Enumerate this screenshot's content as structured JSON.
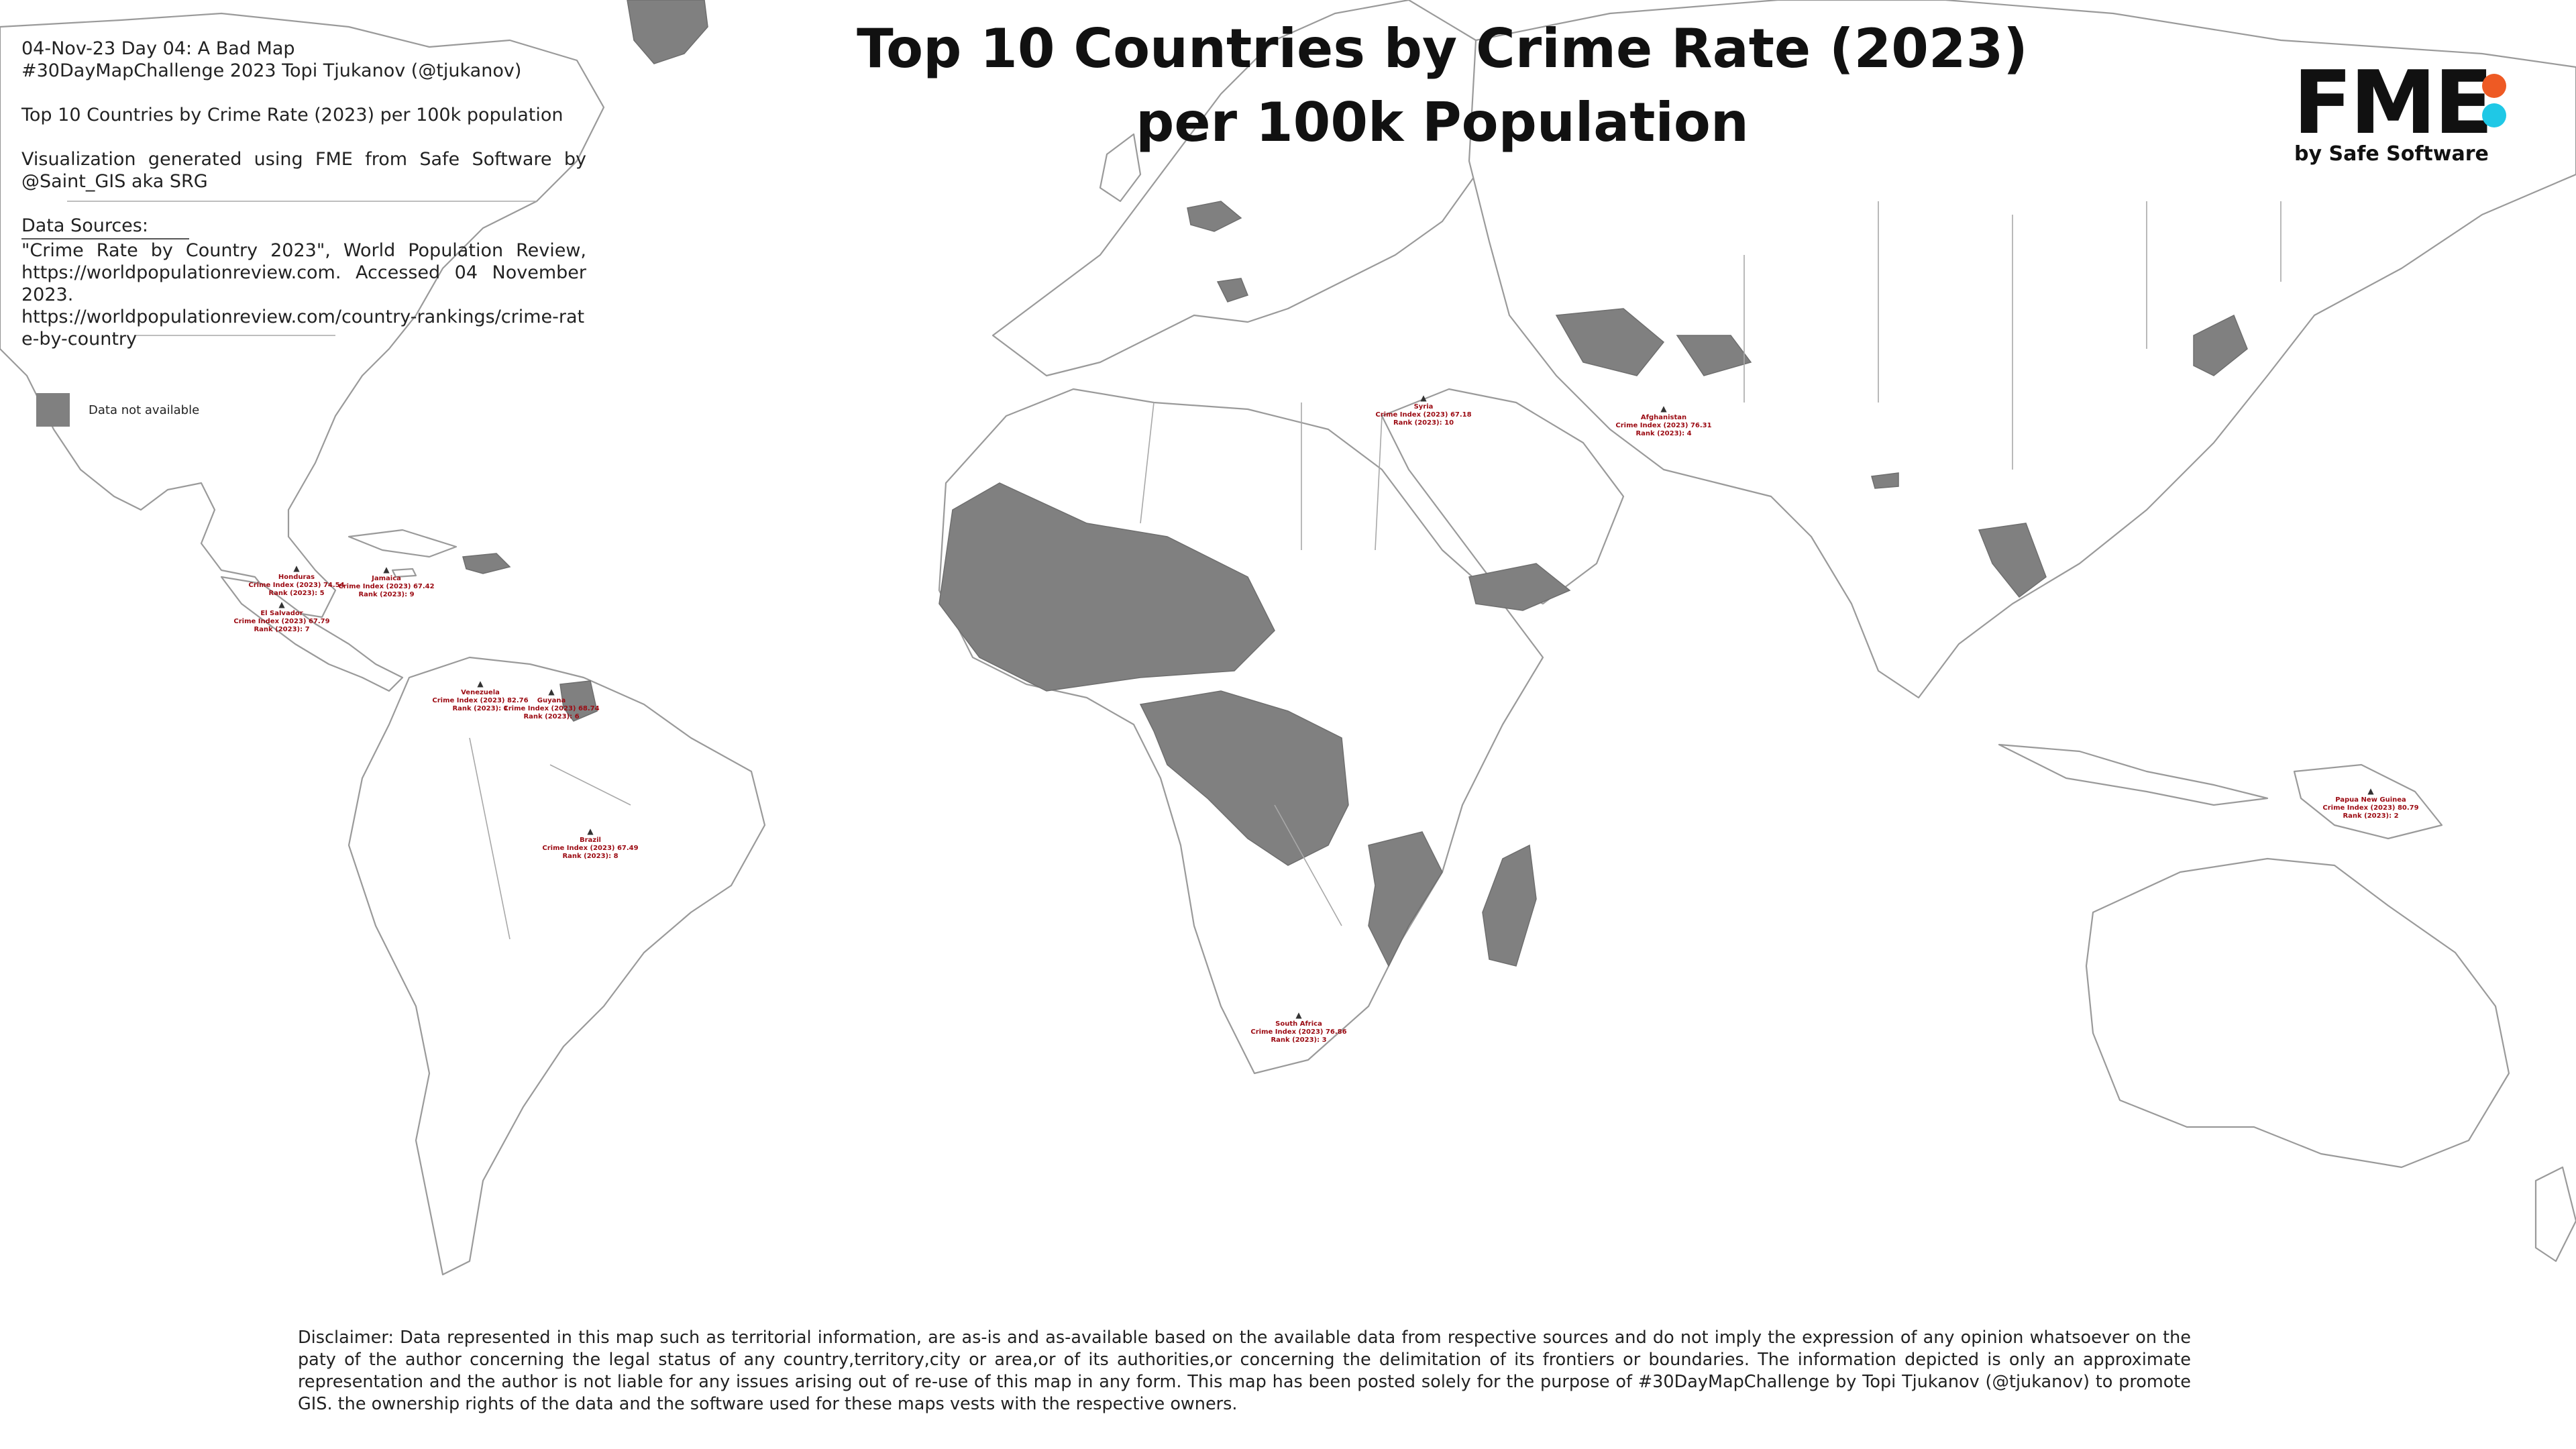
{
  "title": "Top 10 Countries by Crime Rate (2023) per 100k Population",
  "info": {
    "date_line": "04-Nov-23 Day 04: A Bad Map",
    "challenge_line": "#30DayMapChallenge 2023 Topi Tjukanov (@tjukanov)",
    "subtitle": "Top 10 Countries by Crime Rate (2023) per 100k population",
    "credit": "Visualization generated using FME from Safe Software by @Saint_GIS aka SRG",
    "sources_heading": "Data Sources:",
    "source_text": "\"Crime Rate by Country 2023\", World Population Review, https://worldpopulationreview.com. Accessed 04 November 2023.",
    "source_url": "https://worldpopulationreview.com/country-rankings/crime-rate-by-country"
  },
  "legend": {
    "label": "Data not available",
    "color": "#808080"
  },
  "logo": {
    "word": "FME",
    "sub": "by Safe Software",
    "dot_colors": [
      "#ee5a24",
      "#1fc8e6"
    ]
  },
  "colors": {
    "land": "#ffffff",
    "no_data": "#808080",
    "border": "#9a9a9a",
    "label": "#9b0a12"
  },
  "countries": [
    {
      "name": "Venezuela",
      "index_line": "Crime Index (2023) 82.76",
      "rank_line": "Rank (2023): 1"
    },
    {
      "name": "Papua New Guinea",
      "index_line": "Crime Index (2023) 80.79",
      "rank_line": "Rank (2023): 2"
    },
    {
      "name": "South Africa",
      "index_line": "Crime Index (2023) 76.86",
      "rank_line": "Rank (2023): 3"
    },
    {
      "name": "Afghanistan",
      "index_line": "Crime Index (2023) 76.31",
      "rank_line": "Rank (2023): 4"
    },
    {
      "name": "Honduras",
      "index_line": "Crime Index (2023) 74.54",
      "rank_line": "Rank (2023): 5"
    },
    {
      "name": "Guyana",
      "index_line": "Crime Index (2023) 68.74",
      "rank_line": "Rank (2023): 6"
    },
    {
      "name": "El Salvador",
      "index_line": "Crime Index (2023) 67.79",
      "rank_line": "Rank (2023): 7"
    },
    {
      "name": "Brazil",
      "index_line": "Crime Index (2023) 67.49",
      "rank_line": "Rank (2023): 8"
    },
    {
      "name": "Jamaica",
      "index_line": "Crime Index (2023) 67.42",
      "rank_line": "Rank (2023): 9"
    },
    {
      "name": "Syria",
      "index_line": "Crime Index (2023) 67.18",
      "rank_line": "Rank (2023): 10"
    }
  ],
  "disclaimer": "Disclaimer: Data represented in this map such as territorial information, are as-is and as-available based on the available data from respective sources and do not imply the expression of any opinion whatsoever on the paty of the author concerning the legal status of any country,territory,city or area,or of its authorities,or concerning the delimitation of its frontiers or boundaries. The information depicted is only an approximate representation and the author is not liable for any issues arising out of re-use of this map in any form. This map has been posted solely for the purpose of #30DayMapChallenge by Topi Tjukanov (@tjukanov) to promote GIS. the ownership rights of the data and the software used for these maps vests with the respective owners."
}
